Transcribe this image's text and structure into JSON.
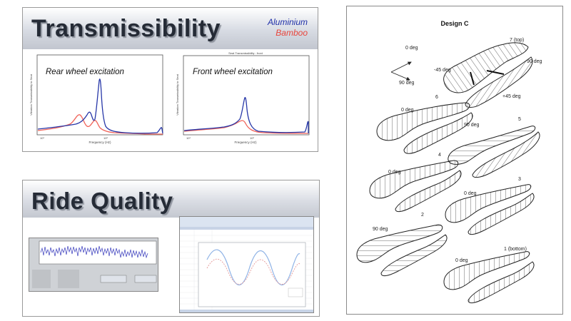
{
  "transmissibility": {
    "title": "Transmissibility",
    "legend": {
      "aluminium": "Aluminium",
      "bamboo": "Bamboo",
      "aluminium_color": "#1f2fa8",
      "bamboo_color": "#e8463c"
    },
    "plots": [
      {
        "caption": "Rear wheel excitation",
        "ylabel": "Vibration Transmissibility to Seat",
        "xlabel": "Frequency (Hz)",
        "x_ticks": [
          "10¹",
          "10²"
        ]
      },
      {
        "caption": "Front wheel excitation",
        "title": "Seat Transmissibility : front",
        "ylabel": "Vibration Transmissibility to Seat",
        "xlabel": "Frequency (Hz)",
        "x_ticks": [
          "10¹",
          "10²"
        ]
      }
    ]
  },
  "ride_quality": {
    "title": "Ride Quality"
  },
  "design": {
    "title": "Design C",
    "axes_labels": {
      "origin": "0 deg",
      "diag": "90 deg"
    },
    "saddles": [
      {
        "num": "7 (top)",
        "left": "-45 deg",
        "right": "90 deg",
        "bottom": "+45 deg"
      },
      {
        "num": "6",
        "label": "0 deg"
      },
      {
        "num": "5",
        "label": "90 deg"
      },
      {
        "num": "4",
        "label": "0 deg"
      },
      {
        "num": "3",
        "label": "0 deg"
      },
      {
        "num": "2",
        "label": "90 deg"
      },
      {
        "num": "1 (bottom)",
        "label": "0 deg"
      }
    ]
  }
}
